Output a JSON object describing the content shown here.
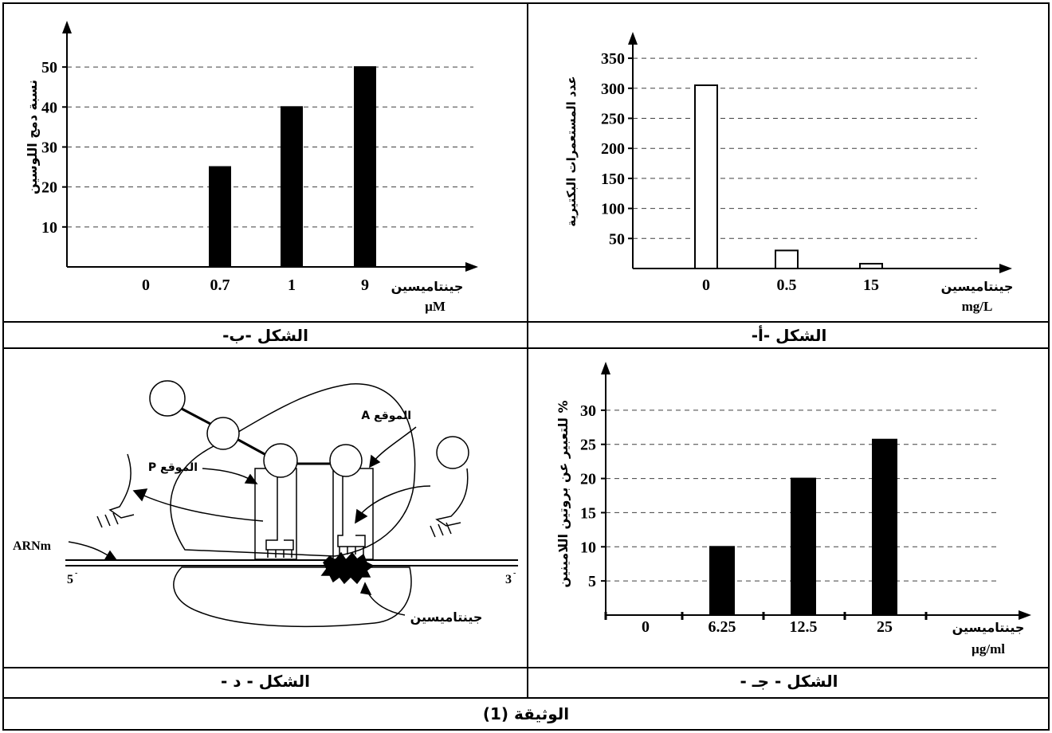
{
  "document_title": "الوثيقة (1)",
  "charts": {
    "a": {
      "caption": "الشكل -أ-",
      "chart_data": {
        "type": "bar",
        "categories": [
          "0",
          "0.5",
          "15"
        ],
        "values": [
          305,
          30,
          8
        ],
        "ylabel": "عدد المستعمرات البكتيرية",
        "xlabel": "جينتاميسين",
        "xunit": "mg/L",
        "yticks": [
          50,
          100,
          150,
          200,
          250,
          300,
          350
        ],
        "ylim": [
          0,
          370
        ],
        "grid": true,
        "bar_fill": "#ffffff"
      }
    },
    "b": {
      "caption": "الشكل -ب-",
      "chart_data": {
        "type": "bar",
        "categories": [
          "0",
          "0.7",
          "1",
          "9"
        ],
        "values": [
          0,
          25,
          40,
          50
        ],
        "ylabel": "نسبة دمج اللوسين",
        "xlabel": "جينتاميسين",
        "xunit": "µM",
        "yticks": [
          10,
          20,
          30,
          40,
          50
        ],
        "ylim": [
          0,
          58
        ],
        "grid": true,
        "bar_fill": "#000000"
      }
    },
    "c": {
      "caption": "الشكل - جـ -",
      "chart_data": {
        "type": "bar",
        "categories": [
          "0",
          "6.25",
          "12.5",
          "25"
        ],
        "values": [
          0,
          10,
          20,
          25.7
        ],
        "ylabel": "% للتعبير عن بروتين اللامينين",
        "xlabel": "جينتاميسين",
        "xunit": "µg/ml",
        "yticks": [
          5,
          10,
          15,
          20,
          25,
          30
        ],
        "ylim": [
          0,
          35
        ],
        "grid": true,
        "bar_fill": "#000000"
      }
    }
  },
  "diagram_d": {
    "caption": "الشكل - د -",
    "labels": {
      "site_a": "الموقع A",
      "site_p": "الموقع P",
      "arnm": "ARNm",
      "five": "5",
      "three": "3",
      "drug": "جينتاميسين"
    }
  }
}
